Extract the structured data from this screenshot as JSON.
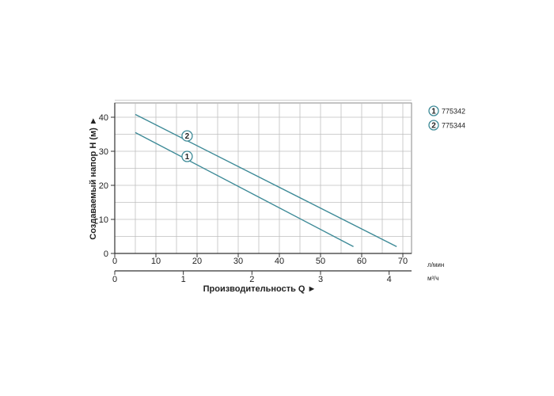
{
  "chart_data": {
    "type": "line",
    "ylabel": "Создаваемый напор H (м) ►",
    "xlabel": "Производительность Q ►",
    "x_unit_primary": "л/мин",
    "x_unit_secondary": "м³/ч",
    "xlim": [
      0,
      72
    ],
    "ylim": [
      0,
      45
    ],
    "x_ticks": [
      "0",
      "10",
      "20",
      "30",
      "40",
      "50",
      "60",
      "70"
    ],
    "x2_ticks": [
      "0",
      "1",
      "2",
      "3",
      "4"
    ],
    "y_ticks": [
      "0",
      "10",
      "20",
      "30",
      "40"
    ],
    "grid": true,
    "legend_position": "right",
    "series": [
      {
        "name": "775342",
        "marker": "1",
        "color": "#3d8a97",
        "x": [
          5,
          58
        ],
        "y": [
          35.5,
          2
        ]
      },
      {
        "name": "775344",
        "marker": "2",
        "color": "#3d8a97",
        "x": [
          5,
          68.5
        ],
        "y": [
          40.8,
          2
        ]
      }
    ]
  }
}
